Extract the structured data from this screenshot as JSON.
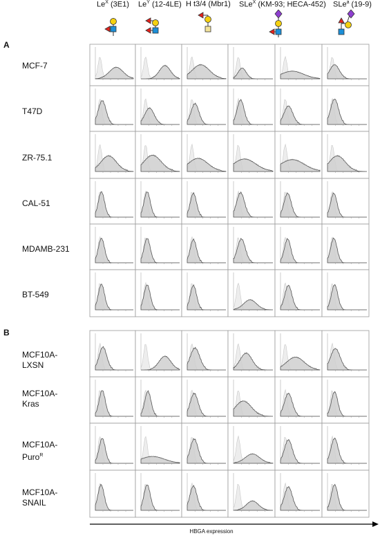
{
  "columns": [
    {
      "name_main": "Le",
      "name_sup": "X",
      "clone": "(3E1)",
      "glycan": "lex"
    },
    {
      "name_main": "Le",
      "name_sup": "Y",
      "clone": "(12-4LE)",
      "glycan": "ley"
    },
    {
      "name_main": "H t3/4",
      "name_sup": "",
      "clone": "(Mbr1)",
      "glycan": "h34"
    },
    {
      "name_main": "SLe",
      "name_sup": "X",
      "clone": "(KM-93; HECA-452)",
      "glycan": "slex"
    },
    {
      "name_main": "SLe",
      "name_sup": "a",
      "clone": "(19-9)",
      "glycan": "slea"
    }
  ],
  "panels": [
    {
      "letter": "A",
      "rows": [
        {
          "line1": "MCF-7",
          "line2": "",
          "sup": ""
        },
        {
          "line1": "T47D",
          "line2": "",
          "sup": ""
        },
        {
          "line1": "ZR-75.1",
          "line2": "",
          "sup": ""
        },
        {
          "line1": "CAL-51",
          "line2": "",
          "sup": ""
        },
        {
          "line1": "MDAMB-231",
          "line2": "",
          "sup": ""
        },
        {
          "line1": "BT-549",
          "line2": "",
          "sup": ""
        }
      ]
    },
    {
      "letter": "B",
      "rows": [
        {
          "line1": "MCF10A-",
          "line2": "LXSN",
          "sup": ""
        },
        {
          "line1": "MCF10A-",
          "line2": "Kras",
          "sup": ""
        },
        {
          "line1": "MCF10A-",
          "line2": "Puro",
          "sup": "R"
        },
        {
          "line1": "MCF10A-",
          "line2": "SNAIL",
          "sup": ""
        }
      ]
    }
  ],
  "axis_label": "HBGA expression",
  "colors": {
    "fucose": "#e8221c",
    "galactose": "#f5d10f",
    "glcnac": "#1c8fd8",
    "galnac": "#f2e39a",
    "sialic": "#8e3fd0",
    "hist_fill": "#cfcfcf",
    "hist_line": "#555555",
    "control_fill": "#ededed"
  }
}
